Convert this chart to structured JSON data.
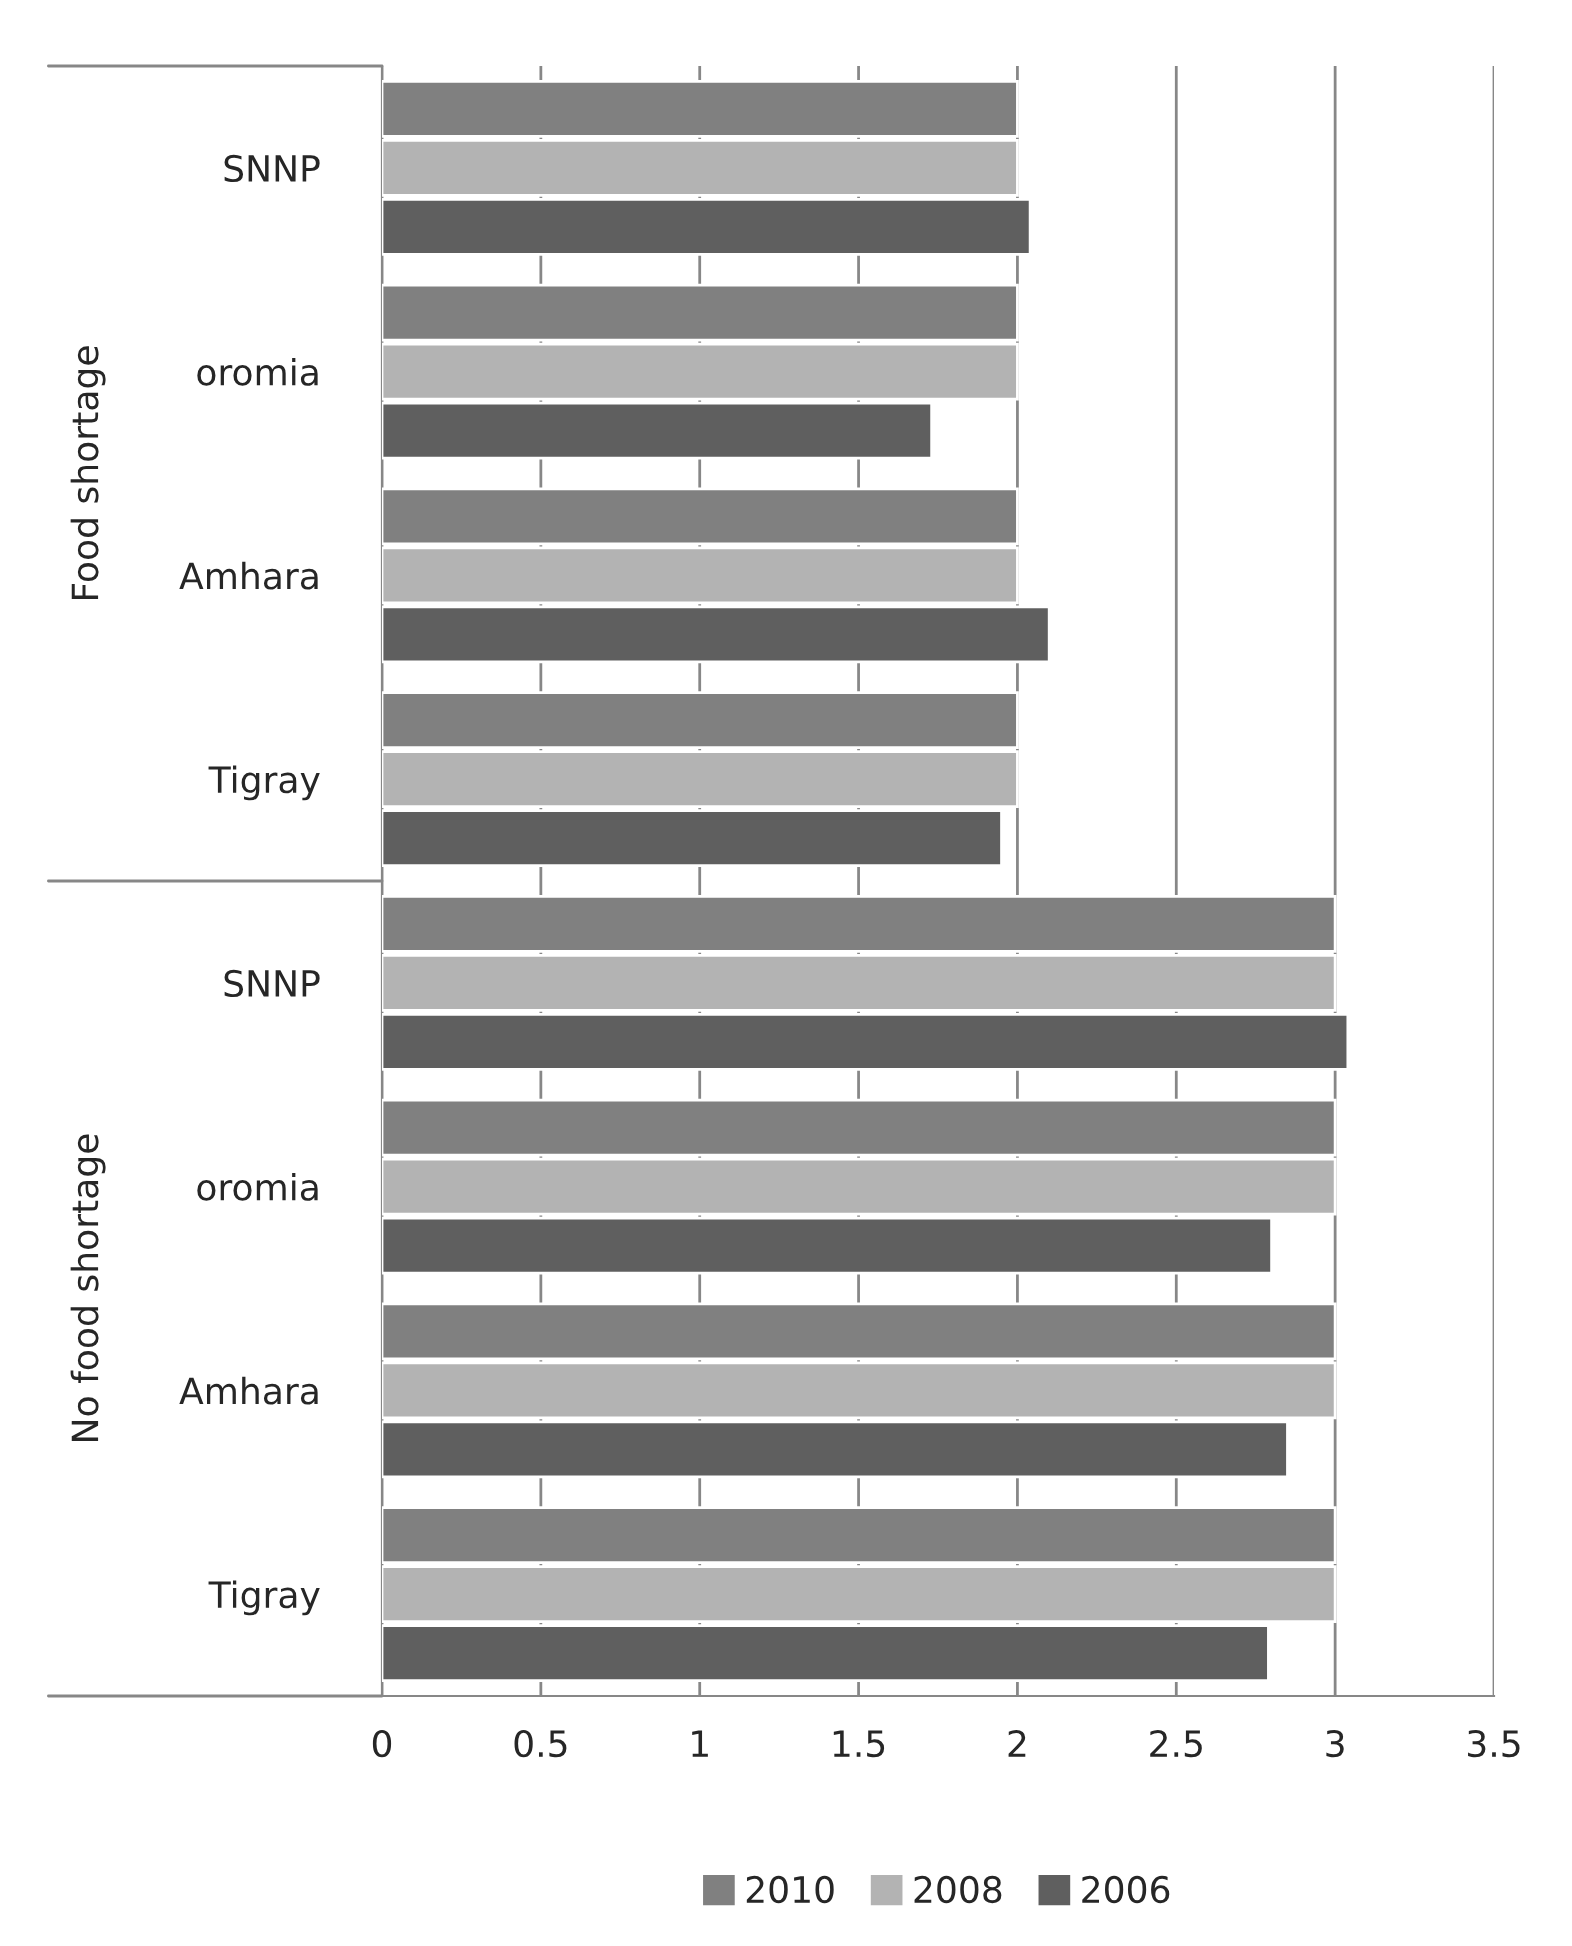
{
  "chart_data": {
    "type": "bar",
    "orientation": "horizontal",
    "categories": [
      "SNNP",
      "oromia",
      "Amhara",
      "Tigray",
      "SNNP",
      "oromia",
      "Amhara",
      "Tigray"
    ],
    "series": [
      {
        "name": "2010",
        "color": "#808080",
        "values": [
          2,
          2,
          2,
          2,
          3,
          3,
          3,
          3
        ]
      },
      {
        "name": "2008",
        "color": "#b3b3b3",
        "values": [
          2,
          2,
          2,
          2,
          3,
          3,
          3,
          3
        ]
      },
      {
        "name": "2006",
        "color": "#5f5f5f",
        "values": [
          2.04,
          1.73,
          2.1,
          1.95,
          3.04,
          2.8,
          2.85,
          2.79
        ]
      }
    ],
    "annotations": [
      "Food shortage",
      "No food shortage"
    ],
    "xlim": [
      0,
      3.5
    ],
    "xticks": [
      0,
      0.5,
      1,
      1.5,
      2,
      2.5,
      3,
      3.5
    ],
    "grid": "x",
    "legend": "bottom"
  }
}
